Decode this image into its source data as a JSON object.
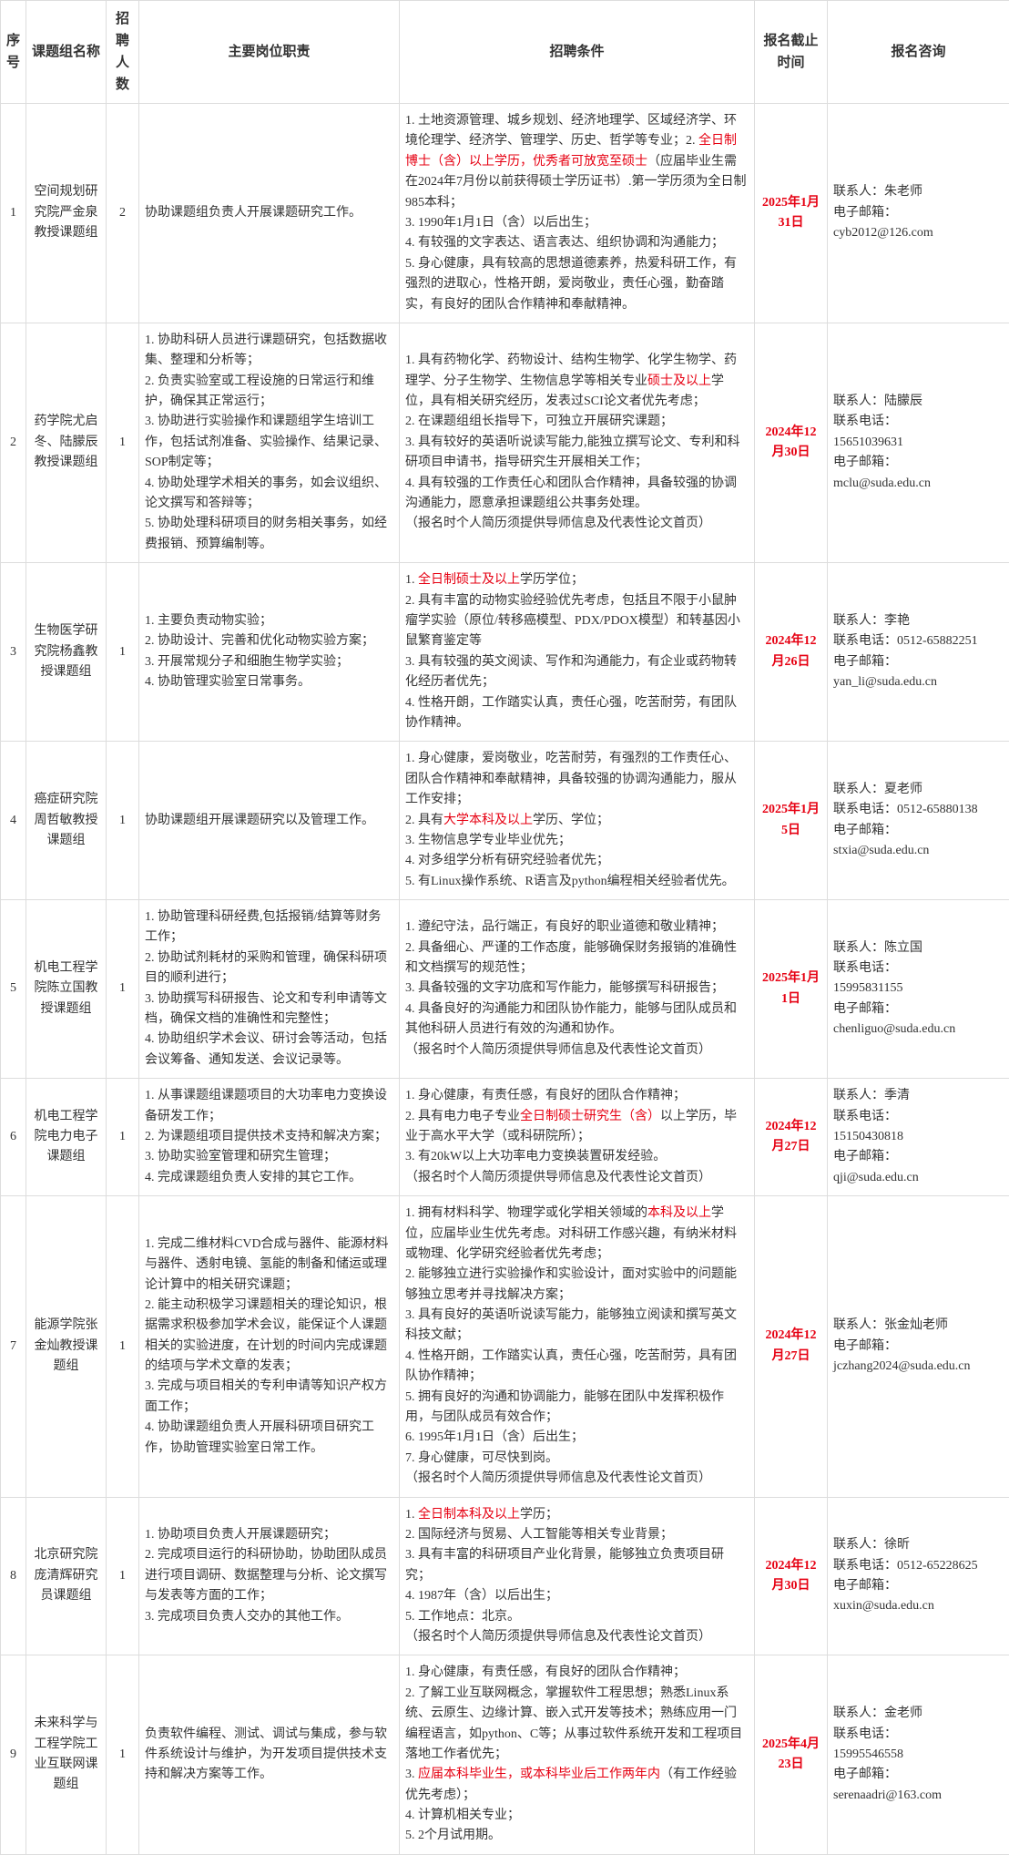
{
  "headers": {
    "seq": "序号",
    "group": "课题组名称",
    "count": "招聘人数",
    "duty": "主要岗位职责",
    "cond": "招聘条件",
    "deadline": "报名截止时间",
    "contact": "报名咨询"
  },
  "rows": [
    {
      "seq": "1",
      "group": "空间规划研究院严金泉教授课题组",
      "count": "2",
      "duty_plain": "协助课题组负责人开展课题研究工作。",
      "cond": [
        {
          "t": "1. 土地资源管理、城乡规划、经济地理学、区域经济学、环境伦理学、经济学、管理学、历史、哲学等专业；"
        },
        {
          "t": "2. "
        },
        {
          "t": "全日制博士（含）以上学历，优秀者可放宽至硕士",
          "r": true
        },
        {
          "t": "（应届毕业生需在2024年7月份以前获得硕士学历证书）.第一学历须为全日制985本科；"
        },
        {
          "br": true
        },
        {
          "t": "3. 1990年1月1日（含）以后出生；"
        },
        {
          "br": true
        },
        {
          "t": "4. 有较强的文字表达、语言表达、组织协调和沟通能力；"
        },
        {
          "br": true
        },
        {
          "t": "5. 身心健康，具有较高的思想道德素养，热爱科研工作，有强烈的进取心，性格开朗，爱岗敬业，责任心强，勤奋踏实，有良好的团队合作精神和奉献精神。"
        }
      ],
      "deadline": {
        "t": "2025年1月31日",
        "r": true
      },
      "contact": "联系人：朱老师\n电子邮箱：\ncyb2012@126.com"
    },
    {
      "seq": "2",
      "group": "药学院尤启冬、陆朦辰教授课题组",
      "count": "1",
      "duty": [
        {
          "t": "1. 协助科研人员进行课题研究，包括数据收集、整理和分析等；"
        },
        {
          "br": true
        },
        {
          "t": "2. 负责实验室或工程设施的日常运行和维护，确保其正常运行；"
        },
        {
          "br": true
        },
        {
          "t": "3. 协助进行实验操作和课题组学生培训工作，包括试剂准备、实验操作、结果记录、SOP制定等；"
        },
        {
          "br": true
        },
        {
          "t": "4. 协助处理学术相关的事务，如会议组织、论文撰写和答辩等；"
        },
        {
          "br": true
        },
        {
          "t": "5. 协助处理科研项目的财务相关事务，如经费报销、预算编制等。"
        }
      ],
      "cond": [
        {
          "t": "1. 具有药物化学、药物设计、结构生物学、化学生物学、药理学、分子生物学、生物信息学等相关专业"
        },
        {
          "t": "硕士及以上",
          "r": true
        },
        {
          "t": "学位，具有相关研究经历，发表过SCI论文者优先考虑；"
        },
        {
          "br": true
        },
        {
          "t": "2. 在课题组组长指导下，可独立开展研究课题；"
        },
        {
          "br": true
        },
        {
          "t": "3. 具有较好的英语听说读写能力,能独立撰写论文、专利和科研项目申请书，指导研究生开展相关工作；"
        },
        {
          "br": true
        },
        {
          "t": "4. 具有较强的工作责任心和团队合作精神，具备较强的协调沟通能力，愿意承担课题组公共事务处理。"
        },
        {
          "br": true
        },
        {
          "t": "（报名时个人简历须提供导师信息及代表性论文首页）"
        }
      ],
      "deadline": {
        "t": "2024年12月30日",
        "r": true
      },
      "contact": "联系人：陆朦辰\n联系电话：\n15651039631\n电子邮箱：\nmclu@suda.edu.cn"
    },
    {
      "seq": "3",
      "group": "生物医学研究院杨鑫教授课题组",
      "count": "1",
      "duty": [
        {
          "t": "1. 主要负责动物实验；"
        },
        {
          "br": true
        },
        {
          "t": "2. 协助设计、完善和优化动物实验方案；"
        },
        {
          "br": true
        },
        {
          "t": "3. 开展常规分子和细胞生物学实验；"
        },
        {
          "br": true
        },
        {
          "t": "4. 协助管理实验室日常事务。"
        }
      ],
      "cond": [
        {
          "t": "1. "
        },
        {
          "t": "全日制硕士及以上",
          "r": true
        },
        {
          "t": "学历学位；"
        },
        {
          "br": true
        },
        {
          "t": "2. 具有丰富的动物实验经验优先考虑，包括且不限于小鼠肿瘤学实验（原位/转移癌模型、PDX/PDOX模型）和转基因小鼠繁育鉴定等"
        },
        {
          "br": true
        },
        {
          "t": "3. 具有较强的英文阅读、写作和沟通能力，有企业或药物转化经历者优先；"
        },
        {
          "br": true
        },
        {
          "t": "4. 性格开朗，工作踏实认真，责任心强，吃苦耐劳，有团队协作精神。"
        }
      ],
      "deadline": {
        "t": "2024年12月26日",
        "r": true
      },
      "contact": "联系人：李艳\n联系电话：0512-65882251\n电子邮箱：\nyan_li@suda.edu.cn"
    },
    {
      "seq": "4",
      "group": "癌症研究院周哲敏教授课题组",
      "count": "1",
      "duty_plain": "协助课题组开展课题研究以及管理工作。",
      "cond": [
        {
          "t": "1. 身心健康，爱岗敬业，吃苦耐劳，有强烈的工作责任心、团队合作精神和奉献精神，具备较强的协调沟通能力，服从工作安排；"
        },
        {
          "br": true
        },
        {
          "t": "2. 具有"
        },
        {
          "t": "大学本科及以上",
          "r": true
        },
        {
          "t": "学历、学位；"
        },
        {
          "br": true
        },
        {
          "t": "3. 生物信息学专业毕业优先；"
        },
        {
          "br": true
        },
        {
          "t": "4. 对多组学分析有研究经验者优先；"
        },
        {
          "br": true
        },
        {
          "t": "5. 有Linux操作系统、R语言及python编程相关经验者优先。"
        }
      ],
      "deadline": {
        "t": "2025年1月5日",
        "r": true
      },
      "contact": "联系人：夏老师\n联系电话：0512-65880138\n电子邮箱：\nstxia@suda.edu.cn"
    },
    {
      "seq": "5",
      "group": "机电工程学院陈立国教授课题组",
      "count": "1",
      "duty": [
        {
          "t": "1. 协助管理科研经费,包括报销/结算等财务工作；"
        },
        {
          "br": true
        },
        {
          "t": "2. 协助试剂耗材的采购和管理，确保科研项目的顺利进行；"
        },
        {
          "br": true
        },
        {
          "t": "3. 协助撰写科研报告、论文和专利申请等文档，确保文档的准确性和完整性；"
        },
        {
          "br": true
        },
        {
          "t": "4. 协助组织学术会议、研讨会等活动，包括会议筹备、通知发送、会议记录等。"
        }
      ],
      "cond": [
        {
          "t": "1. 遵纪守法，品行端正，有良好的职业道德和敬业精神；"
        },
        {
          "br": true
        },
        {
          "t": "2. 具备细心、严谨的工作态度，能够确保财务报销的准确性和文档撰写的规范性；"
        },
        {
          "br": true
        },
        {
          "t": "3. 具备较强的文字功底和写作能力，能够撰写科研报告；"
        },
        {
          "br": true
        },
        {
          "t": "4. 具备良好的沟通能力和团队协作能力，能够与团队成员和其他科研人员进行有效的沟通和协作。"
        },
        {
          "br": true
        },
        {
          "t": "（报名时个人简历须提供导师信息及代表性论文首页）"
        }
      ],
      "deadline": {
        "t": "2025年1月1日",
        "r": true
      },
      "contact": "联系人：陈立国\n联系电话：\n15995831155\n电子邮箱：\nchenliguo@suda.edu.cn"
    },
    {
      "seq": "6",
      "group": "机电工程学院电力电子课题组",
      "count": "1",
      "duty": [
        {
          "t": "1. 从事课题组课题项目的大功率电力变换设备研发工作；"
        },
        {
          "br": true
        },
        {
          "t": "2. 为课题组项目提供技术支持和解决方案；"
        },
        {
          "br": true
        },
        {
          "t": "3. 协助实验室管理和研究生管理；"
        },
        {
          "br": true
        },
        {
          "t": "4. 完成课题组负责人安排的其它工作。"
        }
      ],
      "cond": [
        {
          "t": "1. 身心健康，有责任感，有良好的团队合作精神；"
        },
        {
          "br": true
        },
        {
          "t": "2. 具有电力电子专业"
        },
        {
          "t": "全日制硕士研究生（含）",
          "r": true
        },
        {
          "t": "以上学历，毕业于高水平大学（或科研院所）；"
        },
        {
          "br": true
        },
        {
          "t": "3. 有20kW以上大功率电力变换装置研发经验。"
        },
        {
          "br": true
        },
        {
          "t": "（报名时个人简历须提供导师信息及代表性论文首页）"
        }
      ],
      "deadline": {
        "t": "2024年12月27日",
        "r": true
      },
      "contact": "联系人：季清\n联系电话：\n15150430818\n电子邮箱：\nqji@suda.edu.cn"
    },
    {
      "seq": "7",
      "group": "能源学院张金灿教授课题组",
      "count": "1",
      "duty": [
        {
          "t": "1. 完成二维材料CVD合成与器件、能源材料与器件、透射电镜、氢能的制备和储运或理论计算中的相关研究课题；"
        },
        {
          "br": true
        },
        {
          "t": "2. 能主动积极学习课题相关的理论知识，根据需求积极参加学术会议，能保证个人课题相关的实验进度，在计划的时间内完成课题的结项与学术文章的发表；"
        },
        {
          "br": true
        },
        {
          "t": "3. 完成与项目相关的专利申请等知识产权方面工作；"
        },
        {
          "br": true
        },
        {
          "t": "4. 协助课题组负责人开展科研项目研究工作，协助管理实验室日常工作。"
        }
      ],
      "cond": [
        {
          "t": "1. 拥有材料科学、物理学或化学相关领域的"
        },
        {
          "t": "本科及以上",
          "r": true
        },
        {
          "t": "学位，应届毕业生优先考虑。对科研工作感兴趣，有纳米材料或物理、化学研究经验者优先考虑；"
        },
        {
          "br": true
        },
        {
          "t": "2. 能够独立进行实验操作和实验设计，面对实验中的问题能够独立思考并寻找解决方案；"
        },
        {
          "br": true
        },
        {
          "t": "3. 具有良好的英语听说读写能力，能够独立阅读和撰写英文科技文献；"
        },
        {
          "br": true
        },
        {
          "t": "4. 性格开朗，工作踏实认真，责任心强，吃苦耐劳，具有团队协作精神；"
        },
        {
          "br": true
        },
        {
          "t": "5. 拥有良好的沟通和协调能力，能够在团队中发挥积极作用，与团队成员有效合作；"
        },
        {
          "br": true
        },
        {
          "t": "6. 1995年1月1日（含）后出生；"
        },
        {
          "br": true
        },
        {
          "t": "7. 身心健康，可尽快到岗。"
        },
        {
          "br": true
        },
        {
          "t": "（报名时个人简历须提供导师信息及代表性论文首页）"
        }
      ],
      "deadline": {
        "t": "2024年12月27日",
        "r": true
      },
      "contact": "联系人：张金灿老师\n电子邮箱：\njczhang2024@suda.edu.cn"
    },
    {
      "seq": "8",
      "group": "北京研究院庞清辉研究员课题组",
      "count": "1",
      "duty": [
        {
          "t": "1. 协助项目负责人开展课题研究；"
        },
        {
          "br": true
        },
        {
          "t": "2. 完成项目运行的科研协助，协助团队成员进行项目调研、数据整理与分析、论文撰写与发表等方面的工作；"
        },
        {
          "br": true
        },
        {
          "t": "3. 完成项目负责人交办的其他工作。"
        }
      ],
      "cond": [
        {
          "t": "1. "
        },
        {
          "t": "全日制本科及以上",
          "r": true
        },
        {
          "t": "学历；"
        },
        {
          "br": true
        },
        {
          "t": "2. 国际经济与贸易、人工智能等相关专业背景；"
        },
        {
          "br": true
        },
        {
          "t": "3. 具有丰富的科研项目产业化背景，能够独立负责项目研究；"
        },
        {
          "br": true
        },
        {
          "t": "4. 1987年（含）以后出生；"
        },
        {
          "br": true
        },
        {
          "t": "5. 工作地点：北京。"
        },
        {
          "br": true
        },
        {
          "t": "（报名时个人简历须提供导师信息及代表性论文首页）"
        }
      ],
      "deadline": {
        "t": "2024年12月30日",
        "r": true
      },
      "contact": "联系人：徐昕\n联系电话：0512-65228625\n电子邮箱：\nxuxin@suda.edu.cn"
    },
    {
      "seq": "9",
      "group": "未来科学与工程学院工业互联网课题组",
      "count": "1",
      "duty_plain": "负责软件编程、测试、调试与集成，参与软件系统设计与维护，为开发项目提供技术支持和解决方案等工作。",
      "cond": [
        {
          "t": "1. 身心健康，有责任感，有良好的团队合作精神；"
        },
        {
          "br": true
        },
        {
          "t": "2. 了解工业互联网概念，掌握软件工程思想；熟悉Linux系统、云原生、边缘计算、嵌入式开发等技术；熟练应用一门编程语言，如python、C等；从事过软件系统开发和工程项目落地工作者优先；"
        },
        {
          "br": true
        },
        {
          "t": "3. "
        },
        {
          "t": "应届本科毕业生，或本科毕业后工作两年内",
          "r": true
        },
        {
          "t": "（有工作经验优先考虑）；"
        },
        {
          "br": true
        },
        {
          "t": "4. 计算机相关专业；"
        },
        {
          "br": true
        },
        {
          "t": "5. 2个月试用期。"
        }
      ],
      "deadline": {
        "t": "2025年4月23日",
        "r": true
      },
      "contact": "联系人：金老师\n联系电话：\n15995546558\n电子邮箱：\nserenaadri@163.com"
    }
  ]
}
